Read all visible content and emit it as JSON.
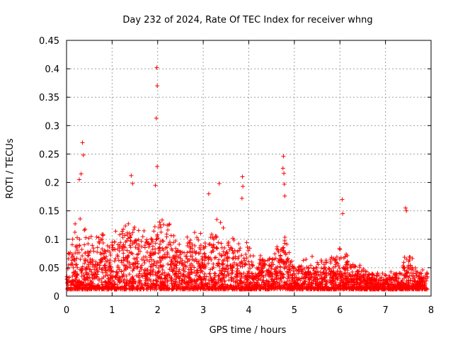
{
  "chart_data": {
    "type": "scatter",
    "title": "Day 232 of 2024, Rate Of TEC Index for receiver whng",
    "xlabel": "GPS time / hours",
    "ylabel": "ROTI / TECUs",
    "xlim": [
      0,
      8
    ],
    "ylim": [
      0,
      0.45
    ],
    "xticks": [
      "0",
      "1",
      "2",
      "3",
      "4",
      "5",
      "6",
      "7",
      "8"
    ],
    "yticks": [
      "0",
      "0.05",
      "0.1",
      "0.15",
      "0.2",
      "0.25",
      "0.3",
      "0.35",
      "0.4",
      "0.45"
    ],
    "grid": true,
    "marker": "+",
    "color": "#ff0000",
    "series": [
      {
        "name": "ROTI",
        "highlights": [
          {
            "x": 0.35,
            "y": 0.27
          },
          {
            "x": 0.37,
            "y": 0.248
          },
          {
            "x": 0.32,
            "y": 0.215
          },
          {
            "x": 0.28,
            "y": 0.205
          },
          {
            "x": 1.98,
            "y": 0.402
          },
          {
            "x": 1.99,
            "y": 0.37
          },
          {
            "x": 1.97,
            "y": 0.313
          },
          {
            "x": 1.99,
            "y": 0.228
          },
          {
            "x": 1.95,
            "y": 0.195
          },
          {
            "x": 1.42,
            "y": 0.212
          },
          {
            "x": 1.45,
            "y": 0.198
          },
          {
            "x": 3.35,
            "y": 0.198
          },
          {
            "x": 3.12,
            "y": 0.18
          },
          {
            "x": 3.86,
            "y": 0.21
          },
          {
            "x": 3.87,
            "y": 0.193
          },
          {
            "x": 3.85,
            "y": 0.172
          },
          {
            "x": 4.76,
            "y": 0.246
          },
          {
            "x": 4.75,
            "y": 0.225
          },
          {
            "x": 4.77,
            "y": 0.216
          },
          {
            "x": 4.78,
            "y": 0.197
          },
          {
            "x": 4.79,
            "y": 0.176
          },
          {
            "x": 6.05,
            "y": 0.17
          },
          {
            "x": 6.06,
            "y": 0.145
          },
          {
            "x": 7.44,
            "y": 0.155
          },
          {
            "x": 7.46,
            "y": 0.15
          }
        ],
        "envelope": [
          {
            "x": 0.0,
            "y": 0.12
          },
          {
            "x": 0.3,
            "y": 0.14
          },
          {
            "x": 0.6,
            "y": 0.12
          },
          {
            "x": 1.0,
            "y": 0.13
          },
          {
            "x": 1.3,
            "y": 0.14
          },
          {
            "x": 1.6,
            "y": 0.135
          },
          {
            "x": 1.9,
            "y": 0.15
          },
          {
            "x": 2.2,
            "y": 0.14
          },
          {
            "x": 2.5,
            "y": 0.11
          },
          {
            "x": 2.8,
            "y": 0.13
          },
          {
            "x": 3.0,
            "y": 0.12
          },
          {
            "x": 3.3,
            "y": 0.14
          },
          {
            "x": 3.6,
            "y": 0.12
          },
          {
            "x": 3.9,
            "y": 0.1
          },
          {
            "x": 4.2,
            "y": 0.08
          },
          {
            "x": 4.5,
            "y": 0.075
          },
          {
            "x": 4.75,
            "y": 0.12
          },
          {
            "x": 5.0,
            "y": 0.06
          },
          {
            "x": 5.3,
            "y": 0.07
          },
          {
            "x": 5.7,
            "y": 0.075
          },
          {
            "x": 6.0,
            "y": 0.09
          },
          {
            "x": 6.3,
            "y": 0.07
          },
          {
            "x": 6.6,
            "y": 0.05
          },
          {
            "x": 7.0,
            "y": 0.04
          },
          {
            "x": 7.3,
            "y": 0.05
          },
          {
            "x": 7.5,
            "y": 0.09
          },
          {
            "x": 7.7,
            "y": 0.05
          },
          {
            "x": 7.9,
            "y": 0.05
          }
        ],
        "baseline": 0.012
      }
    ]
  }
}
